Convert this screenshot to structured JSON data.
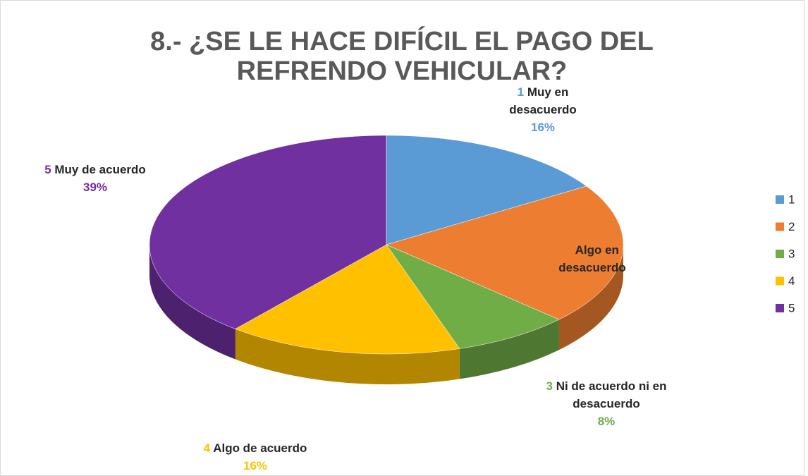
{
  "chart_data": {
    "type": "pie",
    "title": "8.- ¿SE LE HACE DIFÍCIL EL PAGO DEL REFRENDO VEHICULAR?",
    "categories": [
      "1",
      "2",
      "3",
      "4",
      "5"
    ],
    "descriptions": [
      "Muy en desacuerdo",
      "Algo en desacuerdo",
      "Ni de acuerdo ni en desacuerdo",
      "Algo de acuerdo",
      "Muy de acuerdo"
    ],
    "values": [
      16,
      21,
      8,
      16,
      39
    ],
    "value_labels": [
      "16%",
      "21%",
      "8%",
      "16%",
      "39%"
    ],
    "colors": [
      "#5b9bd5",
      "#ed7d31",
      "#70ad47",
      "#ffc000",
      "#7030a0"
    ],
    "legend": "right"
  }
}
